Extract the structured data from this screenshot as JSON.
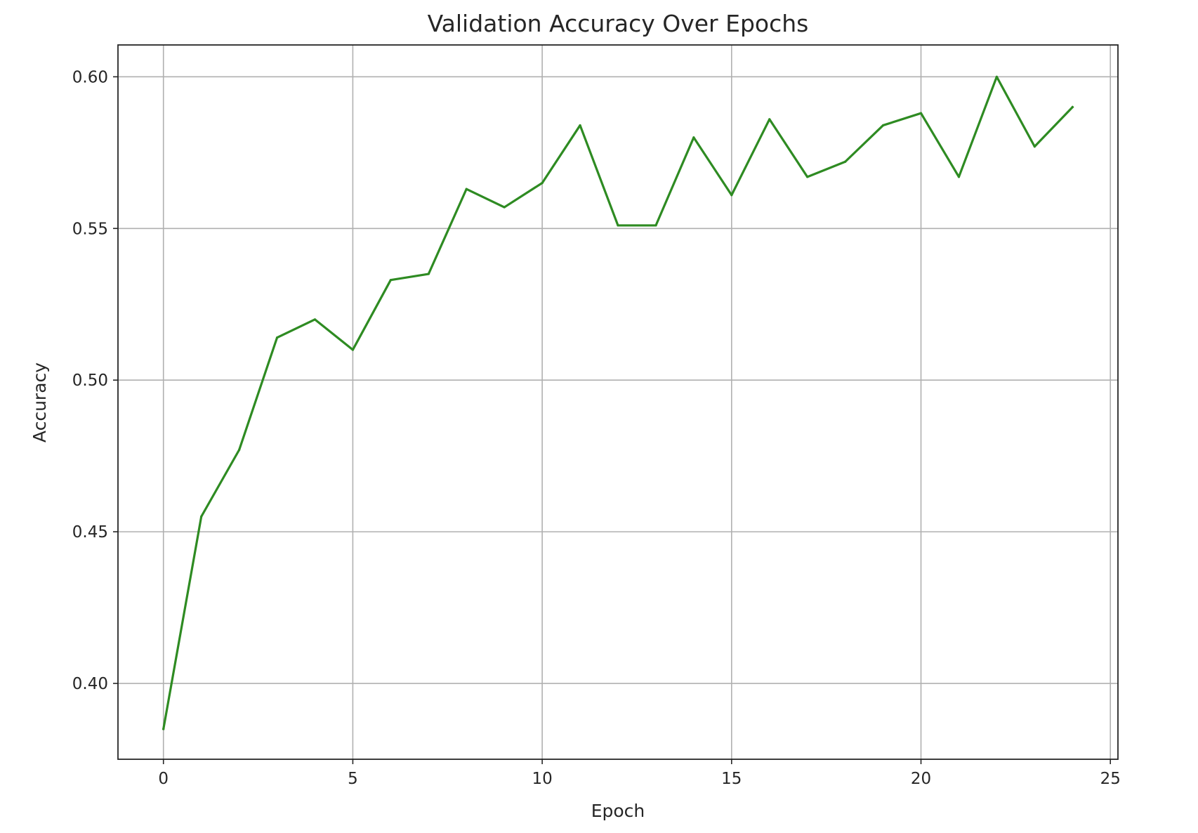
{
  "chart_data": {
    "type": "line",
    "title": "Validation Accuracy Over Epochs",
    "xlabel": "Epoch",
    "ylabel": "Accuracy",
    "xlim": [
      -1.2,
      25.2
    ],
    "ylim": [
      0.375,
      0.6105
    ],
    "x_ticks": [
      0,
      5,
      10,
      15,
      20,
      25
    ],
    "x_tick_labels": [
      "0",
      "5",
      "10",
      "15",
      "20",
      "25"
    ],
    "y_ticks": [
      0.4,
      0.45,
      0.5,
      0.55,
      0.6
    ],
    "y_tick_labels": [
      "0.40",
      "0.45",
      "0.50",
      "0.55",
      "0.60"
    ],
    "grid": true,
    "series": [
      {
        "color": "#2e8b22",
        "x": [
          0,
          1,
          2,
          3,
          4,
          5,
          6,
          7,
          8,
          9,
          10,
          11,
          12,
          13,
          14,
          15,
          16,
          17,
          18,
          19,
          20,
          21,
          22,
          23,
          24
        ],
        "values": [
          0.385,
          0.455,
          0.477,
          0.514,
          0.52,
          0.51,
          0.533,
          0.535,
          0.563,
          0.557,
          0.565,
          0.584,
          0.551,
          0.551,
          0.58,
          0.561,
          0.586,
          0.567,
          0.572,
          0.584,
          0.588,
          0.567,
          0.6,
          0.577,
          0.59
        ]
      }
    ]
  }
}
